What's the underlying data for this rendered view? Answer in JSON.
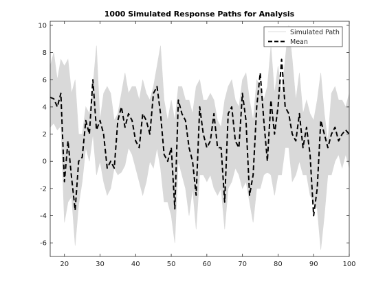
{
  "chart_data": {
    "type": "line",
    "title": "1000 Simulated Response Paths for Analysis",
    "xlabel": "",
    "ylabel": "",
    "xlim": [
      16,
      100
    ],
    "ylim": [
      -7,
      10.3
    ],
    "xticks": [
      20,
      30,
      40,
      50,
      60,
      70,
      80,
      90,
      100
    ],
    "yticks": [
      -6,
      -4,
      -2,
      0,
      2,
      4,
      6,
      8,
      10
    ],
    "grid": false,
    "legend_position": "top-right",
    "series": [
      {
        "name": "Simulated Path",
        "style": "band",
        "color": "#d9d9d9",
        "x": [
          16,
          17,
          18,
          19,
          20,
          21,
          22,
          23,
          24,
          25,
          26,
          27,
          28,
          29,
          30,
          31,
          32,
          33,
          34,
          35,
          36,
          37,
          38,
          39,
          40,
          41,
          42,
          43,
          44,
          45,
          46,
          47,
          48,
          49,
          50,
          51,
          52,
          53,
          54,
          55,
          56,
          57,
          58,
          59,
          60,
          61,
          62,
          63,
          64,
          65,
          66,
          67,
          68,
          69,
          70,
          71,
          72,
          73,
          74,
          75,
          76,
          77,
          78,
          79,
          80,
          81,
          82,
          83,
          84,
          85,
          86,
          87,
          88,
          89,
          90,
          91,
          92,
          93,
          94,
          95,
          96,
          97,
          98,
          99,
          100
        ],
        "lower": [
          2.5,
          2.8,
          2.3,
          2.6,
          -4.5,
          -3,
          -2.6,
          -6.2,
          -3.2,
          -1.5,
          1,
          0,
          2,
          -1,
          0,
          -1.5,
          -2.5,
          -2,
          -0.5,
          -1,
          -0.8,
          -0.3,
          1,
          0.5,
          -0.5,
          -1.5,
          -2.5,
          -1.5,
          0,
          -0.5,
          1,
          -0.5,
          -3,
          -3,
          -4,
          -6,
          0,
          -1,
          -2,
          -4,
          -2,
          -5,
          -1,
          -1,
          -1.5,
          -1,
          -2,
          -2.5,
          -2,
          -5,
          -2,
          -1.5,
          -0.5,
          -1,
          -2,
          -1.5,
          -3,
          -4.5,
          -2,
          -2,
          -1,
          -0.8,
          -1,
          -2.5,
          -1,
          -1,
          1,
          1,
          -1.5,
          -1,
          0,
          -1,
          -1,
          -2.5,
          -3,
          -3.5,
          -6.5,
          -4,
          -1,
          -1,
          0,
          0.5,
          -0.5,
          0.5,
          -0.5
        ],
        "upper": [
          7,
          8,
          6,
          7.5,
          7,
          7.5,
          5,
          6,
          2,
          2,
          4,
          3.5,
          5.5,
          8.5,
          3,
          5,
          5.5,
          5,
          3,
          3.5,
          5,
          6.5,
          5,
          5.5,
          5.5,
          4.5,
          6,
          5,
          4.5,
          5.5,
          7,
          8.5,
          4.5,
          3,
          4.5,
          3,
          5.5,
          5.5,
          4.5,
          4.5,
          3.5,
          5.5,
          6,
          4.5,
          4.5,
          5,
          4.5,
          3,
          2.5,
          4.5,
          5.5,
          6,
          4.5,
          4,
          6,
          6.5,
          4.5,
          3,
          6,
          5.5,
          4.5,
          5.5,
          8.5,
          5,
          7,
          5,
          7.5,
          10,
          7.5,
          4.5,
          6.5,
          3.5,
          4.5,
          3.5,
          3,
          4.5,
          6.5,
          3.5,
          1.5,
          5,
          5.5,
          4.5,
          4.5,
          4,
          5
        ]
      },
      {
        "name": "Mean",
        "style": "dashed",
        "color": "#000000",
        "x": [
          16,
          17,
          18,
          19,
          20,
          21,
          22,
          23,
          24,
          25,
          26,
          27,
          28,
          29,
          30,
          31,
          32,
          33,
          34,
          35,
          36,
          37,
          38,
          39,
          40,
          41,
          42,
          43,
          44,
          45,
          46,
          47,
          48,
          49,
          50,
          51,
          52,
          53,
          54,
          55,
          56,
          57,
          58,
          59,
          60,
          61,
          62,
          63,
          64,
          65,
          66,
          67,
          68,
          69,
          70,
          71,
          72,
          73,
          74,
          75,
          76,
          77,
          78,
          79,
          80,
          81,
          82,
          83,
          84,
          85,
          86,
          87,
          88,
          89,
          90,
          91,
          92,
          93,
          94,
          95,
          96,
          97,
          98,
          99,
          100
        ],
        "y": [
          4.7,
          4.6,
          4,
          5,
          -1.5,
          1.5,
          -1.2,
          -3.6,
          0,
          0.3,
          3,
          2,
          6,
          2.3,
          3,
          2,
          -0.5,
          0,
          -0.5,
          3,
          4,
          2.5,
          3.5,
          3,
          1.5,
          1,
          3.5,
          3,
          2,
          5,
          5.5,
          3.5,
          0.5,
          0,
          1,
          -3.5,
          4.5,
          3.5,
          3,
          1,
          0,
          -2.5,
          4,
          2,
          1,
          1.5,
          3.5,
          1,
          1,
          -3,
          3.5,
          4,
          1.5,
          1,
          5,
          3,
          -2.5,
          -1,
          4,
          6.5,
          3,
          0,
          4.5,
          2,
          4,
          7.5,
          4,
          3.5,
          2,
          1.5,
          3.5,
          1,
          2.5,
          0.5,
          -4,
          -2,
          3,
          2,
          1,
          2,
          2.5,
          1.5,
          2,
          2.3,
          2
        ]
      }
    ]
  }
}
